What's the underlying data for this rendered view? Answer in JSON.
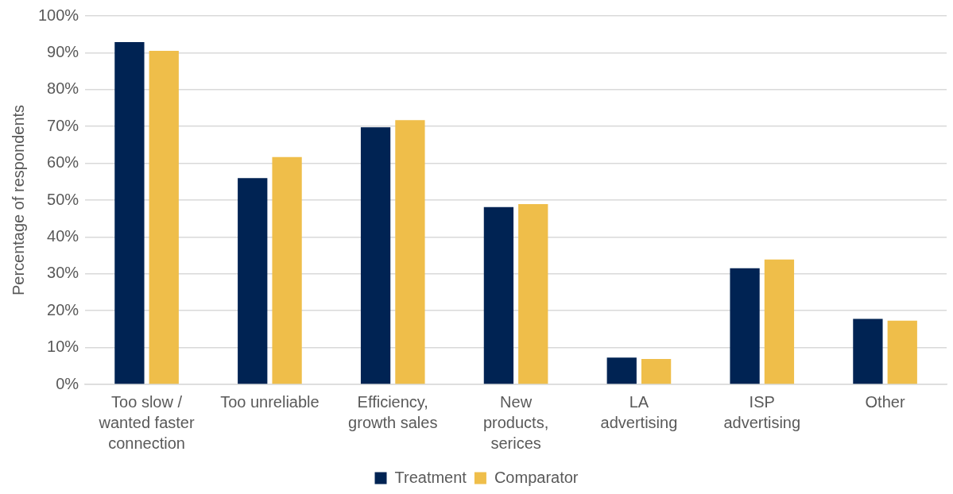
{
  "chart_data": {
    "type": "bar",
    "ylabel": "Percentage of respondents",
    "categories": [
      "Too slow / wanted faster connection",
      "Too unreliable",
      "Efficiency, growth sales",
      "New products, serices",
      "LA advertising",
      "ISP advertising",
      "Other"
    ],
    "series": [
      {
        "name": "Treatment",
        "color": "#002353",
        "values": [
          92.9,
          56.0,
          69.8,
          48.1,
          7.3,
          31.5,
          17.8
        ]
      },
      {
        "name": "Comparator",
        "color": "#efbe4a",
        "values": [
          90.5,
          61.7,
          71.7,
          48.9,
          6.9,
          33.9,
          17.3
        ]
      }
    ],
    "ylim": [
      0,
      100
    ],
    "yticks": [
      {
        "value": 0,
        "label": "0%"
      },
      {
        "value": 10,
        "label": "10%"
      },
      {
        "value": 20,
        "label": "20%"
      },
      {
        "value": 30,
        "label": "30%"
      },
      {
        "value": 40,
        "label": "40%"
      },
      {
        "value": 50,
        "label": "50%"
      },
      {
        "value": 60,
        "label": "60%"
      },
      {
        "value": 70,
        "label": "70%"
      },
      {
        "value": 80,
        "label": "80%"
      },
      {
        "value": 90,
        "label": "90%"
      },
      {
        "value": 100,
        "label": "100%"
      }
    ],
    "grid": "y",
    "legend": "bottom"
  }
}
